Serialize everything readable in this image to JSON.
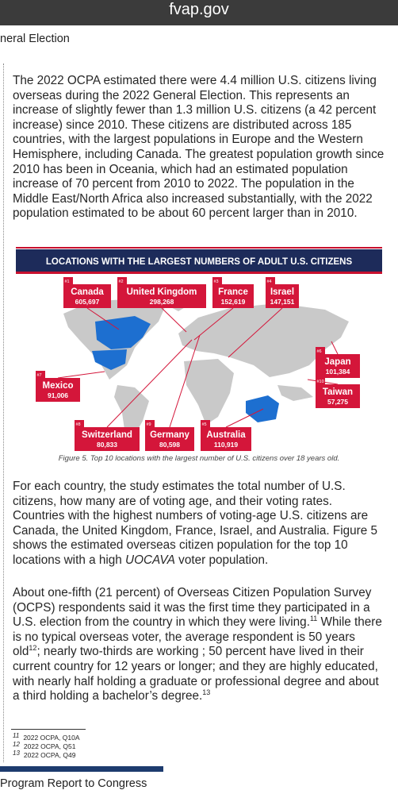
{
  "header": {
    "site": "fvap.gov",
    "section": "neral Election"
  },
  "body": {
    "paragraph_1": "The 2022 OCPA estimated there were 4.4 million U.S. citizens living overseas during the 2022 General Election. This represents an increase of slightly fewer than 1.3 million U.S. citizens (a 42 percent increase) since 2010. These citizens are distributed across 185 countries, with the largest populations in Europe and the Western Hemisphere, including Canada. The greatest population growth since 2010 has been in Oceania, which had an estimated population increase of 70 percent from 2010 to 2022. The population in the Middle East/North Africa also increased substantially, with the 2022 population estimated to be about 60 percent larger than in 2010.",
    "figure": {
      "title": "LOCATIONS WITH THE LARGEST NUMBERS OF ADULT U.S. CITIZENS",
      "locations": [
        {
          "rank": "#1",
          "name": "Canada",
          "count": "605,697"
        },
        {
          "rank": "#2",
          "name": "United Kingdom",
          "count": "298,268"
        },
        {
          "rank": "#3",
          "name": "France",
          "count": "152,619"
        },
        {
          "rank": "#4",
          "name": "Israel",
          "count": "147,151"
        },
        {
          "rank": "#5",
          "name": "Australia",
          "count": "110,919"
        },
        {
          "rank": "#6",
          "name": "Japan",
          "count": "101,384"
        },
        {
          "rank": "#7",
          "name": "Mexico",
          "count": "91,006"
        },
        {
          "rank": "#8",
          "name": "Switzerland",
          "count": "80,833"
        },
        {
          "rank": "#9",
          "name": "Germany",
          "count": "80,598"
        },
        {
          "rank": "#10",
          "name": "Taiwan",
          "count": "57,275"
        }
      ],
      "caption": "Figure 5. Top 10 locations with the largest number of U.S. citizens over 18 years old."
    },
    "paragraph_2": [
      "For each country, the study estimates the total number of U.S. citizens, how many are of voting age, and their voting rates. Countries with the highest numbers of voting-age U.S. citizens are Canada, the United Kingdom, France, Israel, and Australia. Figure 5 shows the estimated overseas citizen population for the top 10 locations with a high ",
      "UOCAVA",
      " voter population."
    ],
    "paragraph_3": [
      "About one-fifth (21 percent) of Overseas Citizen Population Survey (OCPS) respondents said it was the first time they participated in a U.S. election from the country in which they were living.",
      "11",
      " While there is no typical overseas voter, the average respondent is 50 years old",
      "12",
      "; nearly two-thirds are working ; 50 percent have lived in their current country for 12 years or longer; and they are highly educated, with nearly half holding a graduate or professional degree and about a third holding a bachelor’s degree.",
      "13"
    ]
  },
  "footnotes": [
    {
      "number": "11",
      "text": "2022 OCPA, Q10A"
    },
    {
      "number": "12",
      "text": "2022 OCPA, Q51"
    },
    {
      "number": "13",
      "text": "2022 OCPA, Q49"
    }
  ],
  "footer": "Program Report to Congress"
}
